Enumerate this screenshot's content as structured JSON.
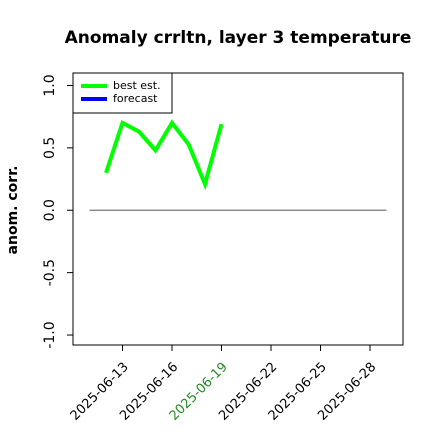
{
  "chart_data": {
    "type": "line",
    "title": "Anomaly crrltn, layer 3 temperature",
    "y_label": "anom. corr.",
    "x": [
      "2025-06-12",
      "2025-06-13",
      "2025-06-14",
      "2025-06-15",
      "2025-06-16",
      "2025-06-17",
      "2025-06-18",
      "2025-06-19"
    ],
    "series": [
      {
        "name": "best est.",
        "color": "#00ff00",
        "values": [
          0.3,
          0.7,
          0.63,
          0.48,
          0.7,
          0.53,
          0.21,
          0.69
        ]
      },
      {
        "name": "forecast",
        "color": "#0000ff",
        "values": [
          null,
          null,
          null,
          null,
          null,
          null,
          null,
          null
        ]
      }
    ],
    "xlim": [
      "2025-06-10",
      "2025-06-30"
    ],
    "xticks": [
      "2025-06-13",
      "2025-06-16",
      "2025-06-19",
      "2025-06-22",
      "2025-06-25",
      "2025-06-28"
    ],
    "highlight_xtick": "2025-06-19",
    "highlight_color": "#228b22",
    "ylim": [
      -1.08,
      1.1
    ],
    "yticks": [
      {
        "value": -1,
        "label": "-1.0"
      },
      -0.5,
      {
        "value": 0,
        "label": "0.0"
      },
      0.5,
      {
        "value": 1,
        "label": "1.0"
      }
    ],
    "reference_line": {
      "value": 0,
      "x": [
        "2025-06-11",
        "2025-06-29"
      ],
      "color": "#777777"
    },
    "legend": "top-left"
  }
}
